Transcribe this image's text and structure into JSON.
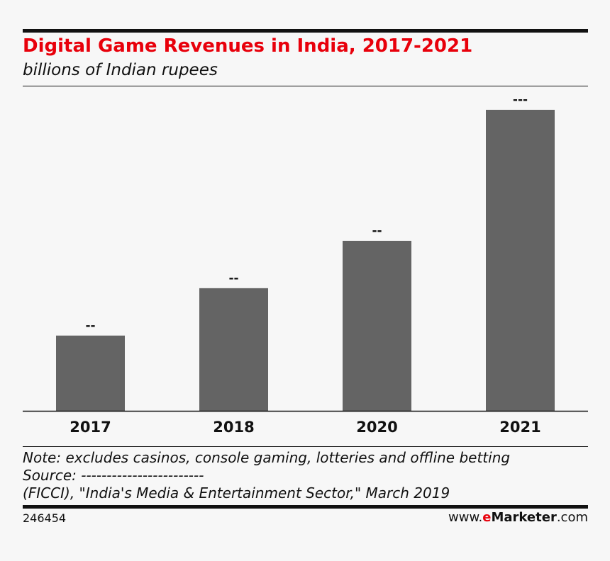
{
  "header": {
    "title": "Digital Game Revenues in India, 2017-2021",
    "subtitle": "billions of Indian rupees"
  },
  "chart_data": {
    "type": "bar",
    "title": "Digital Game Revenues in India, 2017-2021",
    "ylabel": "billions of Indian rupees",
    "categories": [
      "2017",
      "2018",
      "2020",
      "2021"
    ],
    "values": [
      27,
      44,
      61,
      108
    ],
    "data_labels": [
      "--",
      "--",
      "--",
      "---"
    ],
    "ylim": [
      0,
      108
    ],
    "grid": false,
    "bar_color": "#646464"
  },
  "footer": {
    "note": "Note: excludes casinos, console gaming, lotteries and offline betting",
    "source": "Source: ------------------------",
    "source2": "(FICCI), \"India's Media & Entertainment Sector,\" March 2019",
    "chart_id": "246454",
    "brand_prefix": "www.",
    "brand_e": "e",
    "brand_m": "Marketer",
    "brand_suffix": ".com"
  },
  "colors": {
    "title": "#e8000b",
    "bar": "#646464"
  }
}
